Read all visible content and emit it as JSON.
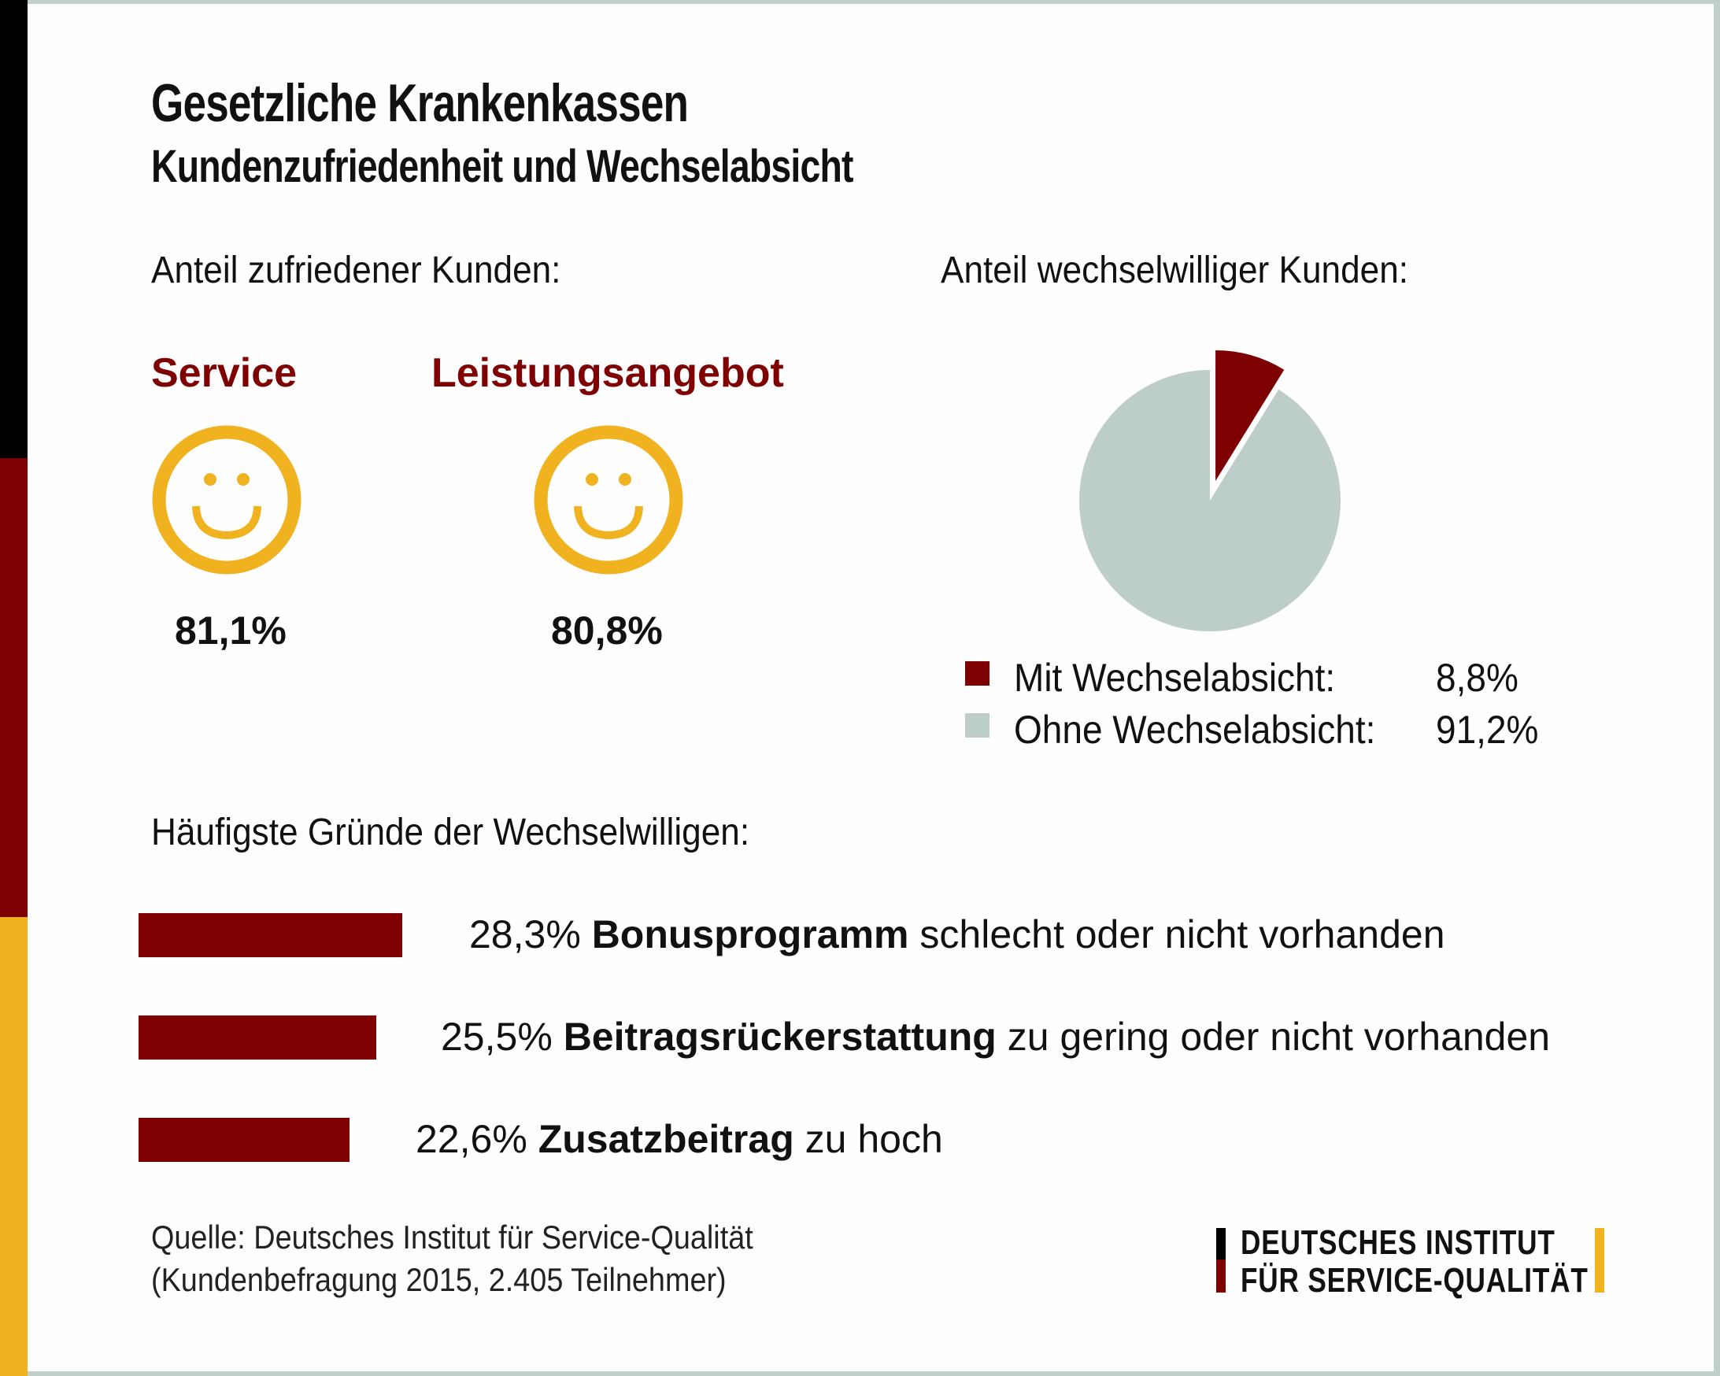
{
  "header": {
    "title": "Gesetzliche Krankenkassen",
    "subtitle": "Kundenzufriedenheit und Wechselabsicht"
  },
  "colors": {
    "dark_red": "#7f0000",
    "gold": "#f1b21f",
    "grey": "#bccdca",
    "black": "#000000",
    "frame": "#c3cfca"
  },
  "satisfaction": {
    "label": "Anteil zufriedener Kunden:",
    "items": [
      {
        "category": "Service",
        "icon": "smiley-icon",
        "value": "81,1%"
      },
      {
        "category": "Leistungsangebot",
        "icon": "smiley-icon",
        "value": "80,8%"
      }
    ]
  },
  "switching": {
    "label": "Anteil wechselwilliger Kunden:"
  },
  "reasons": {
    "label": "Häufigste Gründe der Wechselwilligen:"
  },
  "chart_data": [
    {
      "type": "pie",
      "title": "Anteil wechselwilliger Kunden:",
      "slices": [
        {
          "label": "Mit Wechselabsicht:",
          "value": 8.8,
          "display": "8,8%",
          "color": "#7f0000",
          "exploded": true
        },
        {
          "label": "Ohne Wechselabsicht:",
          "value": 91.2,
          "display": "91,2%",
          "color": "#bccdca",
          "exploded": false
        }
      ],
      "legend": "bottom"
    },
    {
      "type": "bar",
      "orientation": "horizontal",
      "title": "Häufigste Gründe der Wechselwilligen:",
      "categories": [
        "Bonusprogramm",
        "Beitragsrückerstattung",
        "Zusatzbeitrag"
      ],
      "values": [
        28.3,
        25.5,
        22.6
      ],
      "labels": [
        {
          "value": "28,3%",
          "bold": "Bonusprogramm",
          "rest": "schlecht oder nicht vorhanden"
        },
        {
          "value": "25,5%",
          "bold": "Beitragsrückerstattung",
          "rest": "zu gering oder nicht vorhanden"
        },
        {
          "value": "22,6%",
          "bold": "Zusatzbeitrag",
          "rest": "zu hoch"
        }
      ],
      "color": "#7f0000"
    }
  ],
  "footer": {
    "source_line1": "Quelle: Deutsches Institut für Service-Qualität",
    "source_line2": "(Kundenbefragung 2015, 2.405 Teilnehmer)",
    "logo_line1": "DEUTSCHES INSTITUT",
    "logo_line2": "FÜR SERVICE-QUALITÄT"
  }
}
